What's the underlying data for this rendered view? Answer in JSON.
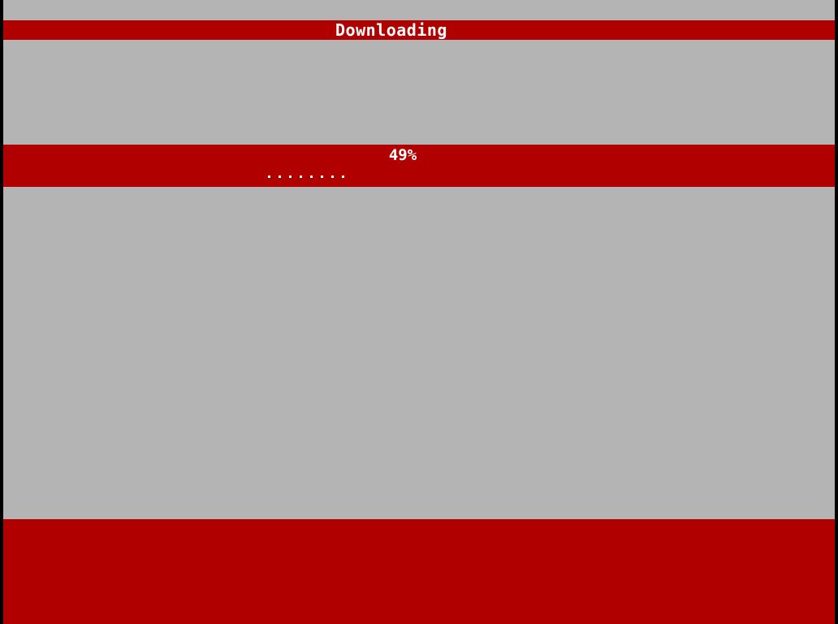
{
  "window": {
    "title": "Downloading"
  },
  "progress": {
    "percent_label": "49%",
    "percent_value": 49,
    "dots_shown": 8
  },
  "colors": {
    "background": "#b4b4b4",
    "bar": "#b00000",
    "text": "#ffffff",
    "border": "#000000"
  }
}
